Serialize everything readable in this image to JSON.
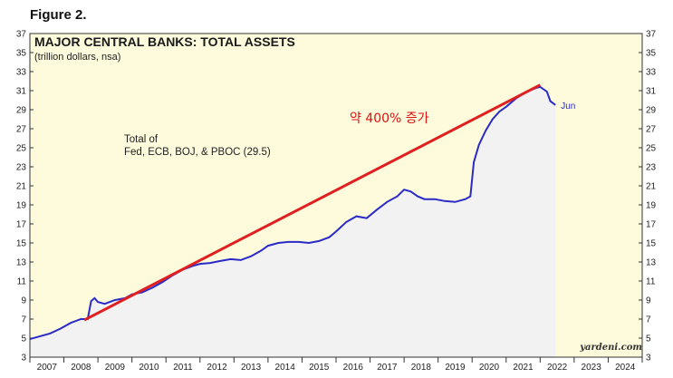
{
  "figure_label": "Figure 2.",
  "chart_data": {
    "type": "line",
    "title": "MAJOR CENTRAL BANKS: TOTAL ASSETS",
    "subtitle": "(trillion dollars, nsa)",
    "annotation": "Total of\nFed, ECB, BOJ, & PBOC (29.5)",
    "end_label": "Jun",
    "source": "yardeni.com",
    "trend_annotation": "약 400% 증가",
    "xlim": [
      2007,
      2025
    ],
    "ylim": [
      3,
      37
    ],
    "yticks": [
      3,
      5,
      7,
      9,
      11,
      13,
      15,
      17,
      19,
      21,
      23,
      25,
      27,
      29,
      31,
      33,
      35,
      37
    ],
    "xticks": [
      "2007",
      "2008",
      "2009",
      "2010",
      "2011",
      "2012",
      "2013",
      "2014",
      "2015",
      "2016",
      "2017",
      "2018",
      "2019",
      "2020",
      "2021",
      "2022",
      "2023",
      "2024"
    ],
    "grid": false,
    "colors": {
      "series": "#2a2ac8",
      "trend": "#e02020",
      "plot_bg": "#fdfbdc",
      "fill": "#f2f2f2"
    },
    "series": [
      {
        "x": [
          2007.0,
          2007.3,
          2007.6,
          2007.9,
          2008.2,
          2008.5,
          2008.7,
          2008.8,
          2008.9,
          2009.0,
          2009.2,
          2009.5,
          2009.8,
          2010.0,
          2010.3,
          2010.6,
          2010.9,
          2011.2,
          2011.5,
          2011.8,
          2012.0,
          2012.3,
          2012.6,
          2012.9,
          2013.2,
          2013.5,
          2013.8,
          2014.0,
          2014.3,
          2014.6,
          2014.9,
          2015.2,
          2015.5,
          2015.8,
          2016.0,
          2016.3,
          2016.6,
          2016.9,
          2017.2,
          2017.5,
          2017.8,
          2018.0,
          2018.2,
          2018.4,
          2018.6,
          2018.9,
          2019.2,
          2019.5,
          2019.8,
          2019.95,
          2020.05,
          2020.2,
          2020.4,
          2020.6,
          2020.8,
          2021.0,
          2021.3,
          2021.6,
          2021.9,
          2022.0,
          2022.2,
          2022.3,
          2022.45
        ],
        "y": [
          4.9,
          5.2,
          5.5,
          6.0,
          6.6,
          7.0,
          7.0,
          8.9,
          9.2,
          8.8,
          8.6,
          9.0,
          9.2,
          9.6,
          9.8,
          10.3,
          10.9,
          11.6,
          12.2,
          12.6,
          12.8,
          12.9,
          13.1,
          13.3,
          13.2,
          13.6,
          14.2,
          14.7,
          15.0,
          15.1,
          15.1,
          15.0,
          15.2,
          15.6,
          16.2,
          17.2,
          17.8,
          17.6,
          18.5,
          19.3,
          19.9,
          20.6,
          20.4,
          19.9,
          19.6,
          19.6,
          19.4,
          19.3,
          19.6,
          19.9,
          23.5,
          25.3,
          26.8,
          28.0,
          28.8,
          29.3,
          30.2,
          30.9,
          31.3,
          31.4,
          30.9,
          29.9,
          29.5
        ]
      }
    ],
    "trend_line": {
      "x": [
        2008.6,
        2022.0
      ],
      "y": [
        6.9,
        31.6
      ]
    }
  }
}
